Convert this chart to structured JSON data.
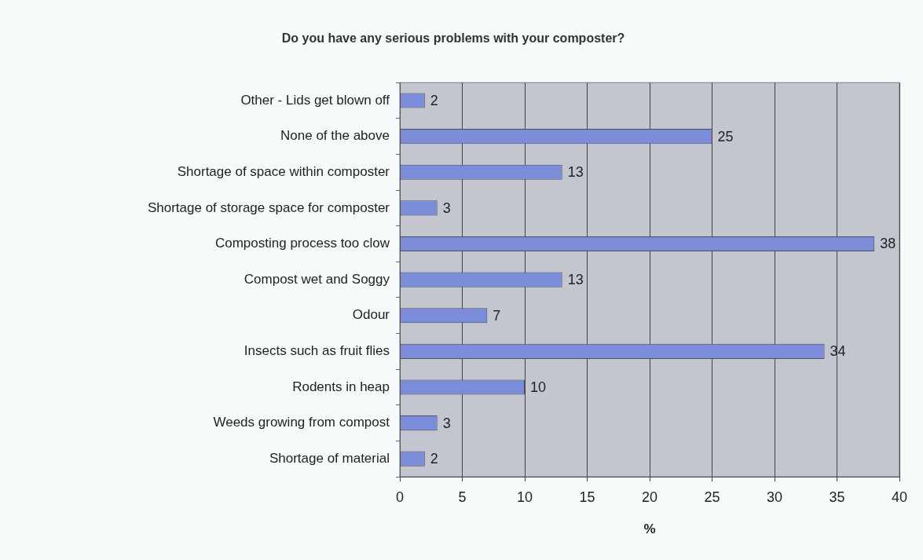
{
  "chart_data": {
    "type": "bar",
    "orientation": "horizontal",
    "title": "Do you have any serious problems with your composter?",
    "xlabel": "%",
    "categories": [
      "Other - Lids get blown off",
      "None of the above",
      "Shortage of space within composter",
      "Shortage of storage space for composter",
      "Composting process too clow",
      "Compost wet and Soggy",
      "Odour",
      "Insects such as fruit flies",
      "Rodents in heap",
      "Weeds growing from compost",
      "Shortage of material"
    ],
    "values": [
      2,
      25,
      13,
      3,
      38,
      13,
      7,
      34,
      10,
      3,
      2
    ],
    "color": "#7b8cd8",
    "xlim": [
      0,
      40
    ],
    "xticks": [
      0,
      5,
      10,
      15,
      20,
      25,
      30,
      35,
      40
    ],
    "grid": "x",
    "data_labels": true
  }
}
